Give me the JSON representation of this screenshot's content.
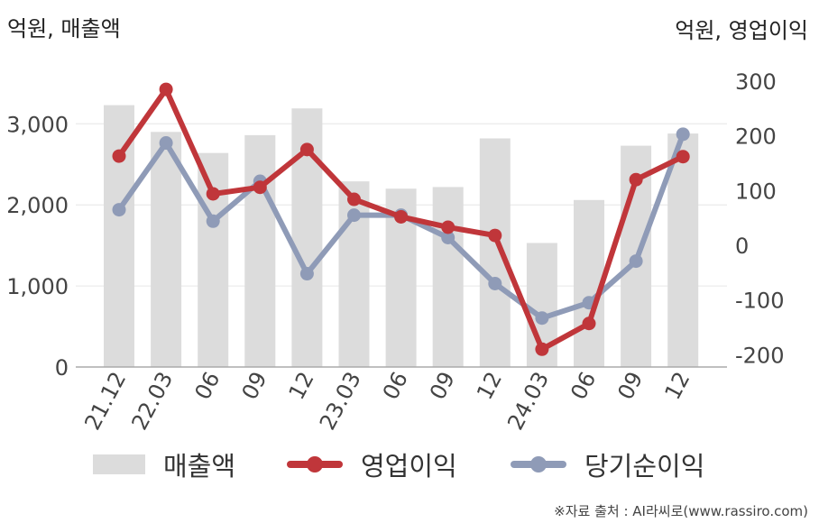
{
  "left_unit": "억원, 매출액",
  "right_unit": "억원, 영업이익",
  "source": "※자료 출처 : AI라씨로(www.rassiro.com)",
  "colors": {
    "bar": "#dcdcdc",
    "operating_profit": "#c0363a",
    "net_income": "#8f9bb7",
    "grid": "#e6e6e6",
    "axis": "#aaaaaa"
  },
  "chart_data": {
    "type": "bar",
    "categories": [
      "21.12",
      "22.03",
      "06",
      "09",
      "12",
      "23.03",
      "06",
      "09",
      "12",
      "24.03",
      "06",
      "09",
      "12"
    ],
    "y_left": {
      "ylim": [
        0,
        3500
      ],
      "ticks": [
        0,
        1000,
        2000,
        3000
      ],
      "tick_labels": [
        "0",
        "1,000",
        "2,000",
        "3,000"
      ]
    },
    "y_right": {
      "ylim": [
        -220,
        300
      ],
      "ticks": [
        -200,
        -100,
        0,
        100,
        200,
        300
      ],
      "tick_labels": [
        "-200",
        "-100",
        "0",
        "100",
        "200",
        "300"
      ]
    },
    "grid": true,
    "legend_position": "bottom",
    "series": [
      {
        "name": "매출액",
        "type": "bar",
        "axis": "left",
        "values": [
          3230,
          2900,
          2640,
          2860,
          3190,
          2290,
          2200,
          2220,
          2820,
          1530,
          2060,
          2730,
          2880
        ]
      },
      {
        "name": "영업이익",
        "type": "line",
        "axis": "right",
        "values": [
          163,
          285,
          94,
          106,
          175,
          84,
          52,
          33,
          18,
          -190,
          -143,
          120,
          162
        ]
      },
      {
        "name": "당기순이익",
        "type": "line",
        "axis": "right",
        "values": [
          65,
          187,
          44,
          117,
          -52,
          55,
          55,
          14,
          -70,
          -133,
          -105,
          -29,
          203
        ]
      }
    ]
  }
}
